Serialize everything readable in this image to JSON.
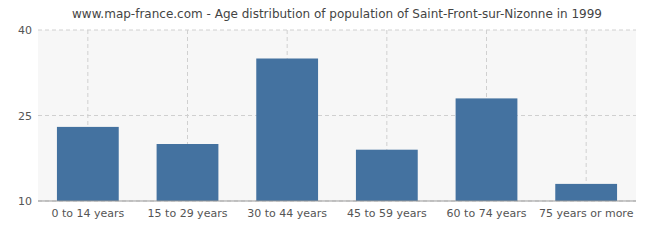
{
  "chart_data": {
    "type": "bar",
    "title": "www.map-france.com - Age distribution of population of Saint-Front-sur-Nizonne in 1999",
    "categories": [
      "0 to 14 years",
      "15 to 29 years",
      "30 to 44 years",
      "45 to 59 years",
      "60 to 74 years",
      "75 years or more"
    ],
    "values": [
      23,
      20,
      35,
      19,
      28,
      13
    ],
    "color": "#4472a0",
    "ylim": [
      10,
      40
    ],
    "yticks": [
      10,
      25,
      40
    ],
    "grid": true
  }
}
